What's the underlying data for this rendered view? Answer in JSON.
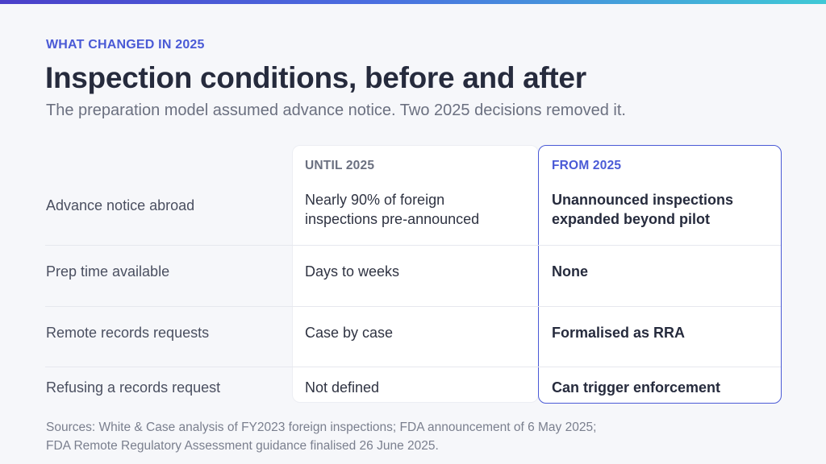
{
  "header": {
    "eyebrow": "WHAT CHANGED IN 2025",
    "title": "Inspection conditions, before and after",
    "subtitle": "The preparation model assumed advance notice. Two 2025 decisions removed it."
  },
  "table": {
    "columns": [
      "UNTIL 2025",
      "FROM 2025"
    ],
    "rows": [
      {
        "label": "Advance notice abroad",
        "until_line1": "Nearly 90% of foreign",
        "until_line2": "inspections pre-announced",
        "from_line1": "Unannounced inspections",
        "from_line2": "expanded beyond pilot"
      },
      {
        "label": "Prep time available",
        "until": "Days to weeks",
        "from": "None"
      },
      {
        "label": "Remote records requests",
        "until": "Case by case",
        "from": "Formalised as RRA"
      },
      {
        "label": "Refusing a records request",
        "until": "Not defined",
        "from": "Can trigger enforcement"
      }
    ]
  },
  "footer": {
    "sources_line1": "Sources: White & Case analysis of FY2023 foreign inspections; FDA announcement of 6 May 2025;",
    "sources_line2": "FDA Remote Regulatory Assessment guidance finalised 26 June 2025."
  },
  "colors": {
    "accent": "#4a5ad6",
    "title": "#262b3d",
    "muted": "#6b7080"
  }
}
